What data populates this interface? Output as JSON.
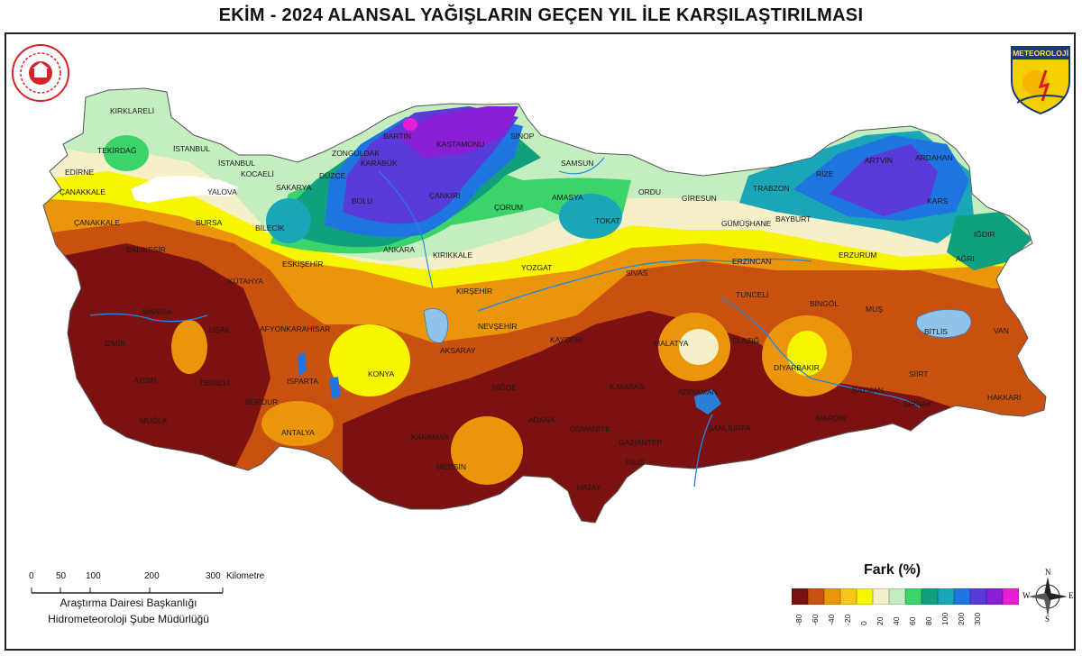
{
  "title": "EKİM - 2024 ALANSAL YAĞIŞLARIN GEÇEN YIL İLE KARŞILAŞTIRILMASI",
  "logo_right_text": "METEOROLOJİ",
  "legend": {
    "title": "Fark (%)",
    "colors": [
      "#7b1110",
      "#c8510f",
      "#eb960a",
      "#f5c61e",
      "#f7f500",
      "#f5f0c8",
      "#c5eec0",
      "#3ad46a",
      "#11a07e",
      "#1ba6b7",
      "#1f75e0",
      "#5a3ad8",
      "#8b1fd5",
      "#e81ed6"
    ],
    "ticks": [
      "-80",
      "-60",
      "-40",
      "-20",
      "0",
      "20",
      "40",
      "60",
      "80",
      "100",
      "200",
      "300"
    ]
  },
  "scale": {
    "ticks": [
      "0",
      "50",
      "100",
      "200",
      "300"
    ],
    "unit": "Kilometre"
  },
  "credit": {
    "line1": "Araştırma Dairesi Başkanlığı",
    "line2": "Hidrometeoroloji Şube Müdürlüğü"
  },
  "compass": {
    "n": "N",
    "s": "S",
    "e": "E",
    "w": "W"
  },
  "cities": [
    {
      "name": "KIRKLARELİ"
    },
    {
      "name": "TEKİRDAĞ"
    },
    {
      "name": "İSTANBUL"
    },
    {
      "name": "EDİRNE"
    },
    {
      "name": "İSTANBUL"
    },
    {
      "name": "KOCAELİ"
    },
    {
      "name": "ÇANAKKALE"
    },
    {
      "name": "YALOVA"
    },
    {
      "name": "SAKARYA"
    },
    {
      "name": "DÜZCE"
    },
    {
      "name": "ZONGULDAK"
    },
    {
      "name": "BARTIN"
    },
    {
      "name": "KARABÜK"
    },
    {
      "name": "KASTAMONU"
    },
    {
      "name": "SİNOP"
    },
    {
      "name": "SAMSUN"
    },
    {
      "name": "ÇANAKKALE"
    },
    {
      "name": "BURSA"
    },
    {
      "name": "BİLECİK"
    },
    {
      "name": "BOLU"
    },
    {
      "name": "ÇANKIRI"
    },
    {
      "name": "ÇORUM"
    },
    {
      "name": "AMASYA"
    },
    {
      "name": "ORDU"
    },
    {
      "name": "GİRESUN"
    },
    {
      "name": "TRABZON"
    },
    {
      "name": "RİZE"
    },
    {
      "name": "ARTVİN"
    },
    {
      "name": "ARDAHAN"
    },
    {
      "name": "TOKAT"
    },
    {
      "name": "GÜMÜŞHANE"
    },
    {
      "name": "BAYBURT"
    },
    {
      "name": "KARS"
    },
    {
      "name": "BALIKESİR"
    },
    {
      "name": "ANKARA"
    },
    {
      "name": "ESKİŞEHİR"
    },
    {
      "name": "KIRIKKALE"
    },
    {
      "name": "YOZGAT"
    },
    {
      "name": "SİVAS"
    },
    {
      "name": "ERZURUM"
    },
    {
      "name": "IĞDIR"
    },
    {
      "name": "AĞRI"
    },
    {
      "name": "ERZİNCAN"
    },
    {
      "name": "KÜTAHYA"
    },
    {
      "name": "KIRŞEHİR"
    },
    {
      "name": "TUNCELİ"
    },
    {
      "name": "BİNGÖL"
    },
    {
      "name": "MUŞ"
    },
    {
      "name": "MANİSA"
    },
    {
      "name": "UŞAK"
    },
    {
      "name": "AFYONKARAHİSAR"
    },
    {
      "name": "NEVŞEHİR"
    },
    {
      "name": "BİTLİS"
    },
    {
      "name": "VAN"
    },
    {
      "name": "İZMİR"
    },
    {
      "name": "AKSARAY"
    },
    {
      "name": "KAYSERİ"
    },
    {
      "name": "MALATYA"
    },
    {
      "name": "ELAZIĞ"
    },
    {
      "name": "KONYA"
    },
    {
      "name": "DİYARBAKIR"
    },
    {
      "name": "AYDIN"
    },
    {
      "name": "DENİZLİ"
    },
    {
      "name": "ISPARTA"
    },
    {
      "name": "SİİRT"
    },
    {
      "name": "BATMAN"
    },
    {
      "name": "NİĞDE"
    },
    {
      "name": "K.MARAŞ"
    },
    {
      "name": "ADIYAMAN"
    },
    {
      "name": "HAKKARİ"
    },
    {
      "name": "BURDUR"
    },
    {
      "name": "ŞIRNAK"
    },
    {
      "name": "MUĞLA"
    },
    {
      "name": "ADANA"
    },
    {
      "name": "MARDİN"
    },
    {
      "name": "OSMANİYE"
    },
    {
      "name": "ŞANLIURFA"
    },
    {
      "name": "ANTALYA"
    },
    {
      "name": "KARAMAN"
    },
    {
      "name": "GAZİANTEP"
    },
    {
      "name": "KİLİS"
    },
    {
      "name": "MERSİN"
    },
    {
      "name": "HATAY"
    }
  ]
}
